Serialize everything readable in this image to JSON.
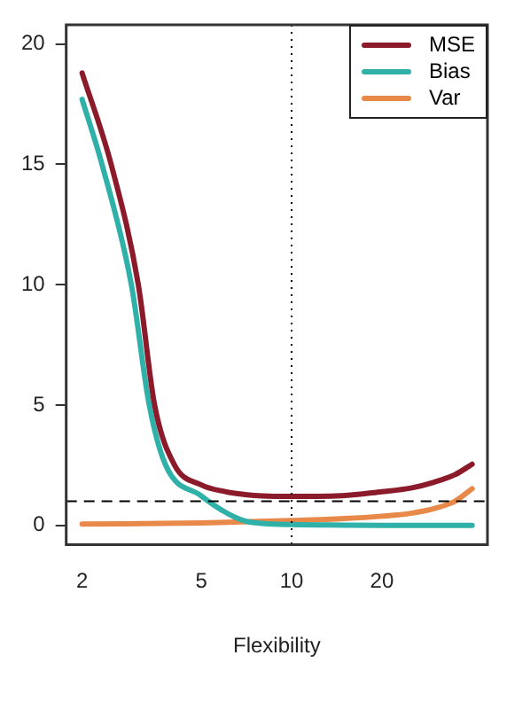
{
  "chart_data": {
    "type": "line",
    "xlabel": "Flexibility",
    "log": "x",
    "grid": false,
    "legend": "top right",
    "marker": "none",
    "line_style": "solid",
    "xlim": [
      1.77,
      45
    ],
    "xticks": [
      2,
      5,
      10,
      20
    ],
    "ylim": [
      -0.8,
      20.8
    ],
    "yticks": [
      0,
      5,
      10,
      15,
      20
    ],
    "series": [
      {
        "name": "MSE",
        "color": "#8b1a2b",
        "x": [
          2,
          2.5,
          3.08,
          3.49,
          4.07,
          5,
          6,
          7,
          8,
          10,
          14,
          20,
          25,
          30,
          35,
          40
        ],
        "values": [
          18.8,
          15,
          10,
          5,
          2.5,
          1.68,
          1.4,
          1.28,
          1.22,
          1.2,
          1.22,
          1.4,
          1.55,
          1.8,
          2.1,
          2.54
        ]
      },
      {
        "name": "Bias",
        "color": "#2fb0a8",
        "x": [
          2,
          2.33,
          2.92,
          3.35,
          3.8,
          5,
          6,
          7,
          8,
          10,
          15,
          20,
          40
        ],
        "values": [
          17.7,
          15,
          10,
          5,
          2.5,
          1.22,
          0.55,
          0.18,
          0.08,
          0.03,
          0.01,
          0,
          0
        ]
      },
      {
        "name": "Var",
        "color": "#e8894a",
        "x": [
          2,
          5,
          10,
          15,
          20,
          25,
          30,
          35,
          40
        ],
        "values": [
          0.05,
          0.1,
          0.2,
          0.28,
          0.38,
          0.5,
          0.7,
          1.0,
          1.52
        ]
      }
    ],
    "ref_lines": [
      {
        "axis": "y",
        "value": 1,
        "line_style": "dashed",
        "color": "#000000"
      },
      {
        "axis": "x",
        "value": 10,
        "line_style": "dotted",
        "color": "#000000"
      }
    ]
  }
}
